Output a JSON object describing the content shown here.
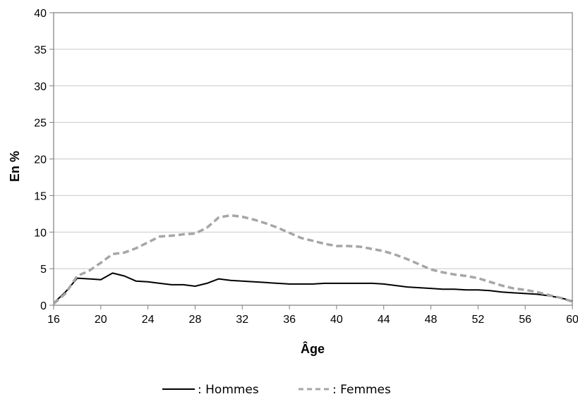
{
  "chart_data": {
    "type": "line",
    "title": "",
    "xlabel": "Âge",
    "ylabel": "En %",
    "xlim": [
      16,
      60
    ],
    "ylim": [
      0,
      40
    ],
    "xticks": [
      16,
      20,
      24,
      28,
      32,
      36,
      40,
      44,
      48,
      52,
      56,
      60
    ],
    "yticks": [
      0,
      5,
      10,
      15,
      20,
      25,
      30,
      35,
      40
    ],
    "grid": true,
    "legend": "bottom",
    "series": [
      {
        "name": ": Hommes",
        "color": "#000000",
        "dash": "solid",
        "x": [
          16,
          17,
          18,
          19,
          20,
          21,
          22,
          23,
          24,
          25,
          26,
          27,
          28,
          29,
          30,
          31,
          32,
          33,
          34,
          35,
          36,
          37,
          38,
          39,
          40,
          41,
          42,
          43,
          44,
          45,
          46,
          47,
          48,
          49,
          50,
          51,
          52,
          53,
          54,
          55,
          56,
          57,
          58,
          59,
          60
        ],
        "y": [
          0.3,
          1.8,
          3.7,
          3.6,
          3.5,
          4.4,
          4.0,
          3.3,
          3.2,
          3.0,
          2.8,
          2.8,
          2.6,
          3.0,
          3.6,
          3.4,
          3.3,
          3.2,
          3.1,
          3.0,
          2.9,
          2.9,
          2.9,
          3.0,
          3.0,
          3.0,
          3.0,
          3.0,
          2.9,
          2.7,
          2.5,
          2.4,
          2.3,
          2.2,
          2.2,
          2.1,
          2.1,
          2.0,
          1.8,
          1.7,
          1.6,
          1.5,
          1.3,
          1.0,
          0.6
        ]
      },
      {
        "name": ": Femmes",
        "color": "#a6a6a6",
        "dash": "dashed",
        "x": [
          16,
          17,
          18,
          19,
          20,
          21,
          22,
          23,
          24,
          25,
          26,
          27,
          28,
          29,
          30,
          31,
          32,
          33,
          34,
          35,
          36,
          37,
          38,
          39,
          40,
          41,
          42,
          43,
          44,
          45,
          46,
          47,
          48,
          49,
          50,
          51,
          52,
          53,
          54,
          55,
          56,
          57,
          58,
          59,
          60
        ],
        "y": [
          0.2,
          1.6,
          4.0,
          4.7,
          5.8,
          7.0,
          7.2,
          7.8,
          8.6,
          9.4,
          9.5,
          9.7,
          9.8,
          10.6,
          12.0,
          12.3,
          12.1,
          11.7,
          11.2,
          10.6,
          9.9,
          9.2,
          8.8,
          8.4,
          8.1,
          8.1,
          8.0,
          7.7,
          7.4,
          6.9,
          6.3,
          5.6,
          4.9,
          4.5,
          4.2,
          4.0,
          3.7,
          3.2,
          2.7,
          2.3,
          2.1,
          1.8,
          1.4,
          1.0,
          0.5
        ]
      }
    ]
  }
}
